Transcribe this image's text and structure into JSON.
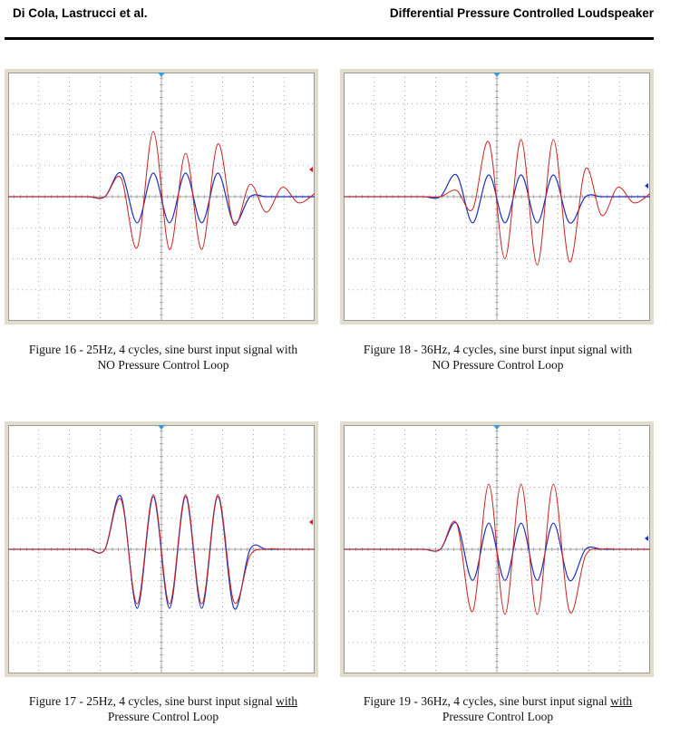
{
  "header": {
    "authors": "Di Cola, Lastrucci et al.",
    "title": "Differential Pressure Controlled Loudspeaker"
  },
  "colors": {
    "input_trace": "#1f2fb8",
    "output_trace": "#cc2020",
    "grid": "#8a8a8a",
    "frame": "#e0ddcd",
    "marker": "#3b9bd6"
  },
  "figures": [
    {
      "id": "fig16",
      "caption_line1": "Figure 16 - 25Hz, 4 cycles, sine burst input signal with",
      "caption_pre": "",
      "caption_underlined": "",
      "caption_line2": "NO Pressure Control Loop",
      "chart_data": {
        "type": "line",
        "x_divisions": 10,
        "y_divisions": 8,
        "right_marker": "red",
        "series": [
          {
            "color": "blue",
            "values": [
              0,
              0,
              0,
              0,
              0,
              0,
              0,
              0.38,
              -0.42,
              0.38,
              -0.42,
              0.38,
              -0.42,
              0.38,
              -0.42,
              0,
              0,
              0,
              0,
              0
            ]
          },
          {
            "color": "red",
            "values": [
              0,
              0,
              0,
              0,
              0,
              0,
              0,
              0.3,
              -0.82,
              1.05,
              -0.85,
              0.7,
              -0.85,
              0.85,
              -0.45,
              0.2,
              -0.25,
              0.15,
              -0.1,
              0.05
            ]
          }
        ]
      }
    },
    {
      "id": "fig18",
      "caption_line1": "Figure 18 - 36Hz, 4 cycles, sine burst input signal with",
      "caption_pre": "",
      "caption_underlined": "",
      "caption_line2": "NO Pressure Control Loop",
      "chart_data": {
        "type": "line",
        "x_divisions": 10,
        "y_divisions": 8,
        "right_marker": "blue",
        "series": [
          {
            "color": "blue",
            "values": [
              0,
              0,
              0,
              0,
              0,
              0,
              0,
              0.35,
              -0.42,
              0.35,
              -0.42,
              0.35,
              -0.42,
              0.35,
              -0.42,
              0,
              0,
              0,
              0,
              0
            ]
          },
          {
            "color": "red",
            "values": [
              0,
              0,
              0,
              0,
              0,
              0,
              0,
              0.1,
              -0.2,
              0.88,
              -1.0,
              0.92,
              -1.1,
              0.92,
              -1.05,
              0.45,
              -0.3,
              0.15,
              -0.1,
              0.05
            ]
          }
        ]
      }
    },
    {
      "id": "fig17",
      "caption_line1": "Figure 17 - 25Hz, 4 cycles, sine burst input signal ",
      "caption_pre": "",
      "caption_underlined": "with",
      "caption_line2": "Pressure Control Loop",
      "chart_data": {
        "type": "line",
        "x_divisions": 10,
        "y_divisions": 8,
        "right_marker": "red",
        "series": [
          {
            "color": "blue",
            "values": [
              0,
              0,
              0,
              0,
              0,
              0,
              0,
              0.85,
              -0.95,
              0.85,
              -0.95,
              0.85,
              -0.95,
              0.85,
              -0.95,
              0,
              0,
              0,
              0,
              0
            ]
          },
          {
            "color": "red",
            "values": [
              0,
              0,
              0,
              0,
              0,
              0,
              0,
              0.8,
              -0.88,
              0.88,
              -0.88,
              0.88,
              -0.88,
              0.88,
              -0.85,
              -0.1,
              0,
              0,
              0,
              0
            ]
          }
        ]
      }
    },
    {
      "id": "fig19",
      "caption_line1": "Figure 19 - 36Hz, 4 cycles, sine burst input signal ",
      "caption_pre": "",
      "caption_underlined": "with",
      "caption_line2": "Pressure Control Loop",
      "chart_data": {
        "type": "line",
        "x_divisions": 10,
        "y_divisions": 8,
        "right_marker": "blue",
        "series": [
          {
            "color": "blue",
            "values": [
              0,
              0,
              0,
              0,
              0,
              0,
              0,
              0.42,
              -0.5,
              0.42,
              -0.5,
              0.42,
              -0.5,
              0.42,
              -0.5,
              0,
              0,
              0,
              0,
              0
            ]
          },
          {
            "color": "red",
            "values": [
              0,
              0,
              0,
              0,
              0,
              0,
              0,
              0.42,
              -1.0,
              1.05,
              -1.05,
              1.05,
              -1.05,
              1.05,
              -1.0,
              -0.1,
              0,
              0,
              0,
              0
            ]
          }
        ]
      }
    }
  ]
}
